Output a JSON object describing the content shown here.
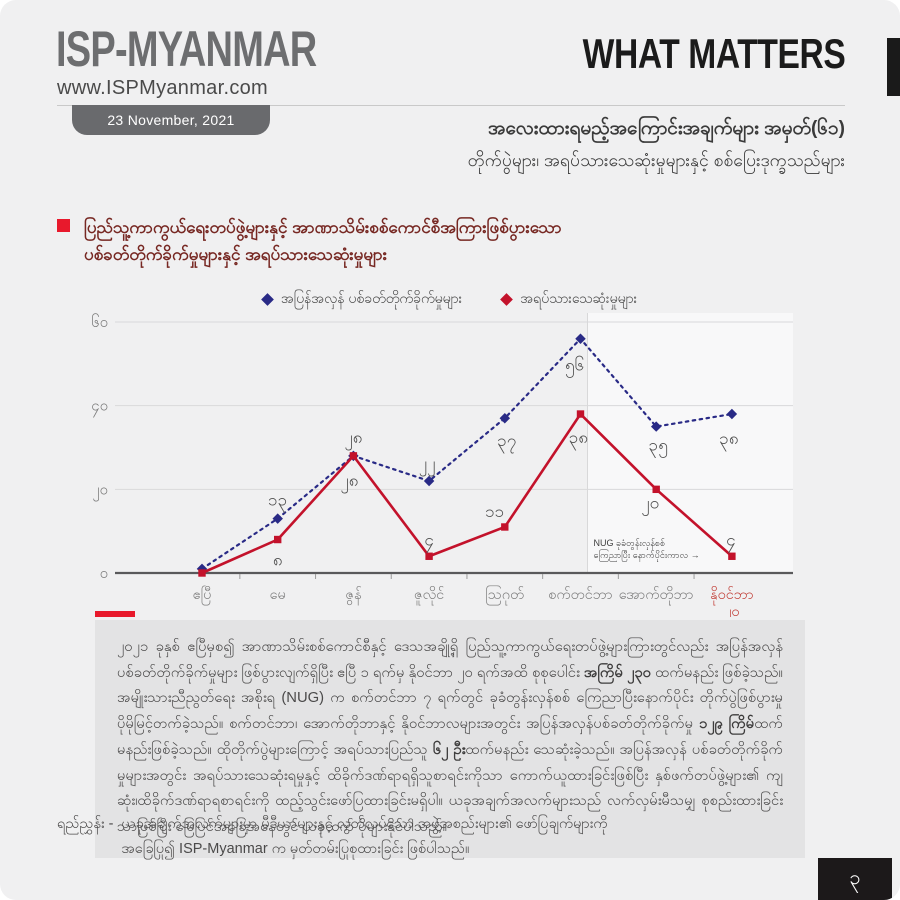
{
  "header": {
    "logo_title": "ISP-MYANMAR",
    "logo_url": "www.ISPMyanmar.com",
    "masthead": "WHAT MATTERS",
    "date_badge": "23 November, 2021"
  },
  "title": {
    "line1": "အလေးထားရမည့်အကြောင်းအချက်များ အမှတ်(၆၁)",
    "line2": "တိုက်ပွဲများ၊ အရပ်သားသေဆုံးမှုများနှင့် စစ်ပြေးဒုက္ခသည်များ"
  },
  "section_heading": {
    "line1": "ပြည်သူ့ကာကွယ်ရေးတပ်ဖွဲ့များနှင့် အာဏာသိမ်းစစ်ကောင်စီအကြားဖြစ်ပွားသော",
    "line2": "ပစ်ခတ်တိုက်ခိုက်မှုများနှင့် အရပ်သားသေဆုံးမှုများ"
  },
  "chart_data": {
    "type": "line",
    "categories": [
      "ဧပြီ",
      "မေ",
      "ဇွန်",
      "ဇူလိုင်",
      "သြဂုတ်",
      "စက်တင်ဘာ",
      "အောက်တိုဘာ",
      "နိုဝင်ဘာ"
    ],
    "last_category_line2": "၂၀",
    "last_category_color": "#c2413a",
    "y_ticks": [
      0,
      20,
      40,
      60
    ],
    "y_tick_labels": [
      "၀",
      "၂၀",
      "၄၀",
      "၆၀"
    ],
    "ylim": [
      0,
      63
    ],
    "grid": true,
    "legend_position": "top-center",
    "series": [
      {
        "name": "အပြန်အလှန် ပစ်ခတ်တိုက်ခိုက်မှုများ",
        "color": "#292a86",
        "line_style": "dotted",
        "marker": "diamond",
        "values": [
          1,
          13,
          28,
          22,
          37,
          56,
          35,
          38
        ],
        "value_labels": [
          "",
          "၁၃",
          "၂၈",
          "၂၂",
          "၃၇",
          "၅၆",
          "၃၅",
          "၃၈"
        ]
      },
      {
        "name": "အရပ်သားသေဆုံးမှုများ",
        "color": "#c3122b",
        "line_style": "solid",
        "marker": "square",
        "values": [
          0,
          8,
          28,
          4,
          11,
          38,
          20,
          4
        ],
        "value_labels": [
          "",
          "၈",
          "၂၈",
          "၄",
          "၁၁",
          "၃၈",
          "၂၀",
          "၄"
        ]
      }
    ],
    "label_offsets": {
      "blue": [
        [
          0,
          0
        ],
        [
          0,
          -13
        ],
        [
          -4,
          30
        ],
        [
          -2,
          -12
        ],
        [
          2,
          28
        ],
        [
          -6,
          32
        ],
        [
          2,
          24
        ],
        [
          -3,
          30
        ]
      ],
      "red": [
        [
          0,
          0
        ],
        [
          0,
          26
        ],
        [
          0,
          -13
        ],
        [
          0,
          -11
        ],
        [
          -10,
          -10
        ],
        [
          -2,
          29
        ],
        [
          -6,
          19
        ],
        [
          -1,
          -11
        ]
      ]
    },
    "annotation": {
      "line1": "NUG ခုခံတွန်းလှန်စစ်",
      "line2": "ကြေညာပြီး နောက်ပိုင်းကာလ",
      "arrow": "→",
      "highlight_from_index": 5
    }
  },
  "paragraph": {
    "segments": [
      {
        "bold": false,
        "text": "၂၀၂၁ ခုနှစ် ဧပြီမှစ၍ အာဏာသိမ်းစစ်ကောင်စီနှင့် ဒေသအချို့ရှိ ပြည်သူ့ကာကွယ်ရေးတပ်ဖွဲ့များကြားတွင်လည်း အပြန်အလှန် ပစ်ခတ်တိုက်ခိုက်မှုများ ဖြစ်ပွားလျက်ရှိပြီး ဧပြီ ၁ ရက်မှ နိုဝင်ဘာ ၂၀ ရက်အထိ စုစုပေါင်း "
      },
      {
        "bold": true,
        "text": "အကြိမ် ၂၃၀"
      },
      {
        "bold": false,
        "text": " ထက်မနည်း ဖြစ်ခဲ့သည်။ အမျိုးသားညီညွတ်ရေး အစိုးရ (NUG) က စက်တင်ဘာ ၇ ရက်တွင် ခုခံတွန်းလှန်စစ် ကြေညာပြီးနောက်ပိုင်း တိုက်ပွဲဖြစ်ပွားမှု ပိုမိုမြင့်တက်ခဲ့သည်။ စက်တင်ဘာ၊ အောက်တိုဘာနှင့် နိုဝင်ဘာလများအတွင်း အပြန်အလှန်ပစ်ခတ်တိုက်ခိုက်မှု "
      },
      {
        "bold": true,
        "text": "၁၂၉ ကြိမ်"
      },
      {
        "bold": false,
        "text": "ထက်မနည်းဖြစ်ခဲ့သည်။ ထိုတိုက်ပွဲများကြောင့် အရပ်သားပြည်သူ "
      },
      {
        "bold": true,
        "text": "၆၂ ဦး"
      },
      {
        "bold": false,
        "text": "ထက်မနည်း သေဆုံးခဲ့သည်။ အပြန်အလှန် ပစ်ခတ်တိုက်ခိုက်မှုများအတွင်း အရပ်သားသေဆုံးရမှုနှင့် ထိခိုက်ဒဏ်ရာရရှိသူစာရင်းကိုသာ ကောက်ယူထားခြင်းဖြစ်ပြီး နှစ်ဖက်တပ်ဖွဲ့များ၏ ကျဆုံး၊ထိခိုက်ဒဏ်ရာရစာရင်းကို ထည့်သွင်းဖော်ပြထားခြင်းမရှိပါ။ ယခုအချက်အလက်များသည် လက်လှမ်းမီသမျှ စုစည်းထားခြင်းသာဖြစ်ပြီး မြေပြင်အခြေအနေတွင် ယခုထက် ပိုများနိုင်ပါသည်။"
      }
    ]
  },
  "footnote": {
    "label": "ရည်ညွှန်း -",
    "line1": "ယခုအချက်အလက်များမှာ မီဒီယာများနှင့် လွတ်လပ်သော အဖွဲ့အစည်းများ၏ ဖော်ပြချက်များကို",
    "line2": "အခြေပြု၍ ISP-Myanmar က မှတ်တမ်းပြုစုထားခြင်း ဖြစ်ပါသည်။"
  },
  "page_number": "၃"
}
